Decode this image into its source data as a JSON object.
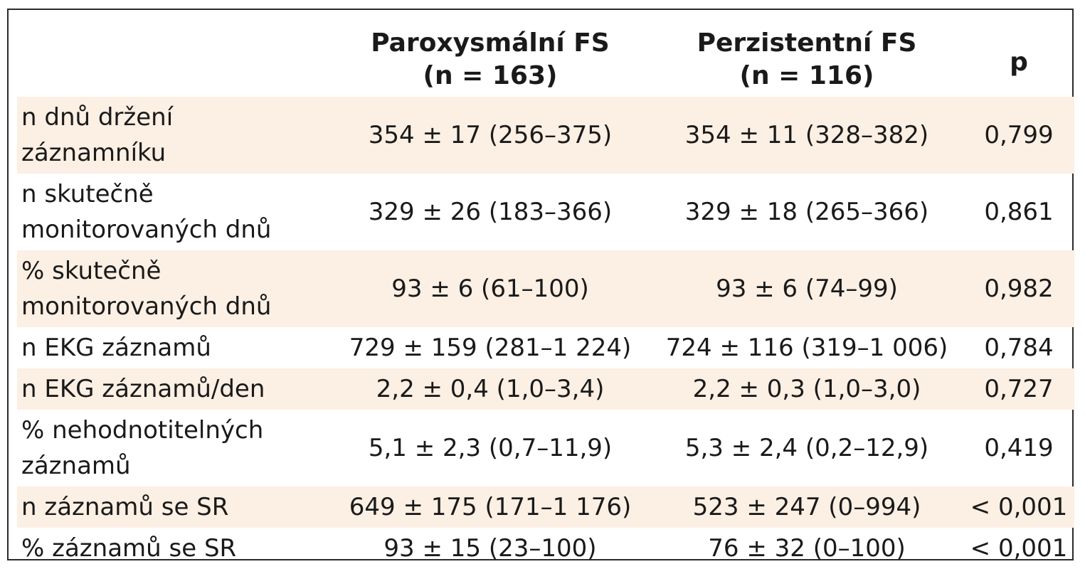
{
  "table": {
    "headers": [
      {
        "line1": "",
        "line2": ""
      },
      {
        "line1": "Paroxysmální FS",
        "line2": "(n = 163)"
      },
      {
        "line1": "Perzistentní FS",
        "line2": "(n = 116)"
      },
      {
        "line1": "p",
        "line2": ""
      }
    ],
    "rows": [
      {
        "label": "n dnů držení záznamníku",
        "paroxysmal": "354 ± 17 (256–375)",
        "persistent": "354 ± 11 (328–382)",
        "p": "0,799"
      },
      {
        "label": "n skutečně monitorovaných dnů",
        "paroxysmal": "329 ± 26 (183–366)",
        "persistent": "329 ± 18 (265–366)",
        "p": "0,861"
      },
      {
        "label": "% skutečně monitorovaných dnů",
        "paroxysmal": "93 ± 6 (61–100)",
        "persistent": "93 ± 6 (74–99)",
        "p": "0,982"
      },
      {
        "label": "n EKG záznamů",
        "paroxysmal": "729 ± 159 (281–1 224)",
        "persistent": "724 ± 116 (319–1 006)",
        "p": "0,784"
      },
      {
        "label": "n EKG záznamů/den",
        "paroxysmal": "2,2 ± 0,4 (1,0–3,4)",
        "persistent": "2,2 ± 0,3 (1,0–3,0)",
        "p": "0,727"
      },
      {
        "label": "% nehodnotitelných záznamů",
        "paroxysmal": "5,1 ± 2,3 (0,7–11,9)",
        "persistent": "5,3 ± 2,4 (0,2–12,9)",
        "p": "0,419"
      },
      {
        "label": "n záznamů se SR",
        "paroxysmal": "649 ± 175 (171–1 176)",
        "persistent": "523 ± 247 (0–994)",
        "p": "< 0,001"
      },
      {
        "label": "% záznamů se SR",
        "paroxysmal": "93 ± 15 (23–100)",
        "persistent": "76 ± 32 (0–100)",
        "p": "< 0,001"
      }
    ],
    "colors": {
      "shaded_row": "#fcefe3",
      "border": "#2b2b2b"
    }
  }
}
